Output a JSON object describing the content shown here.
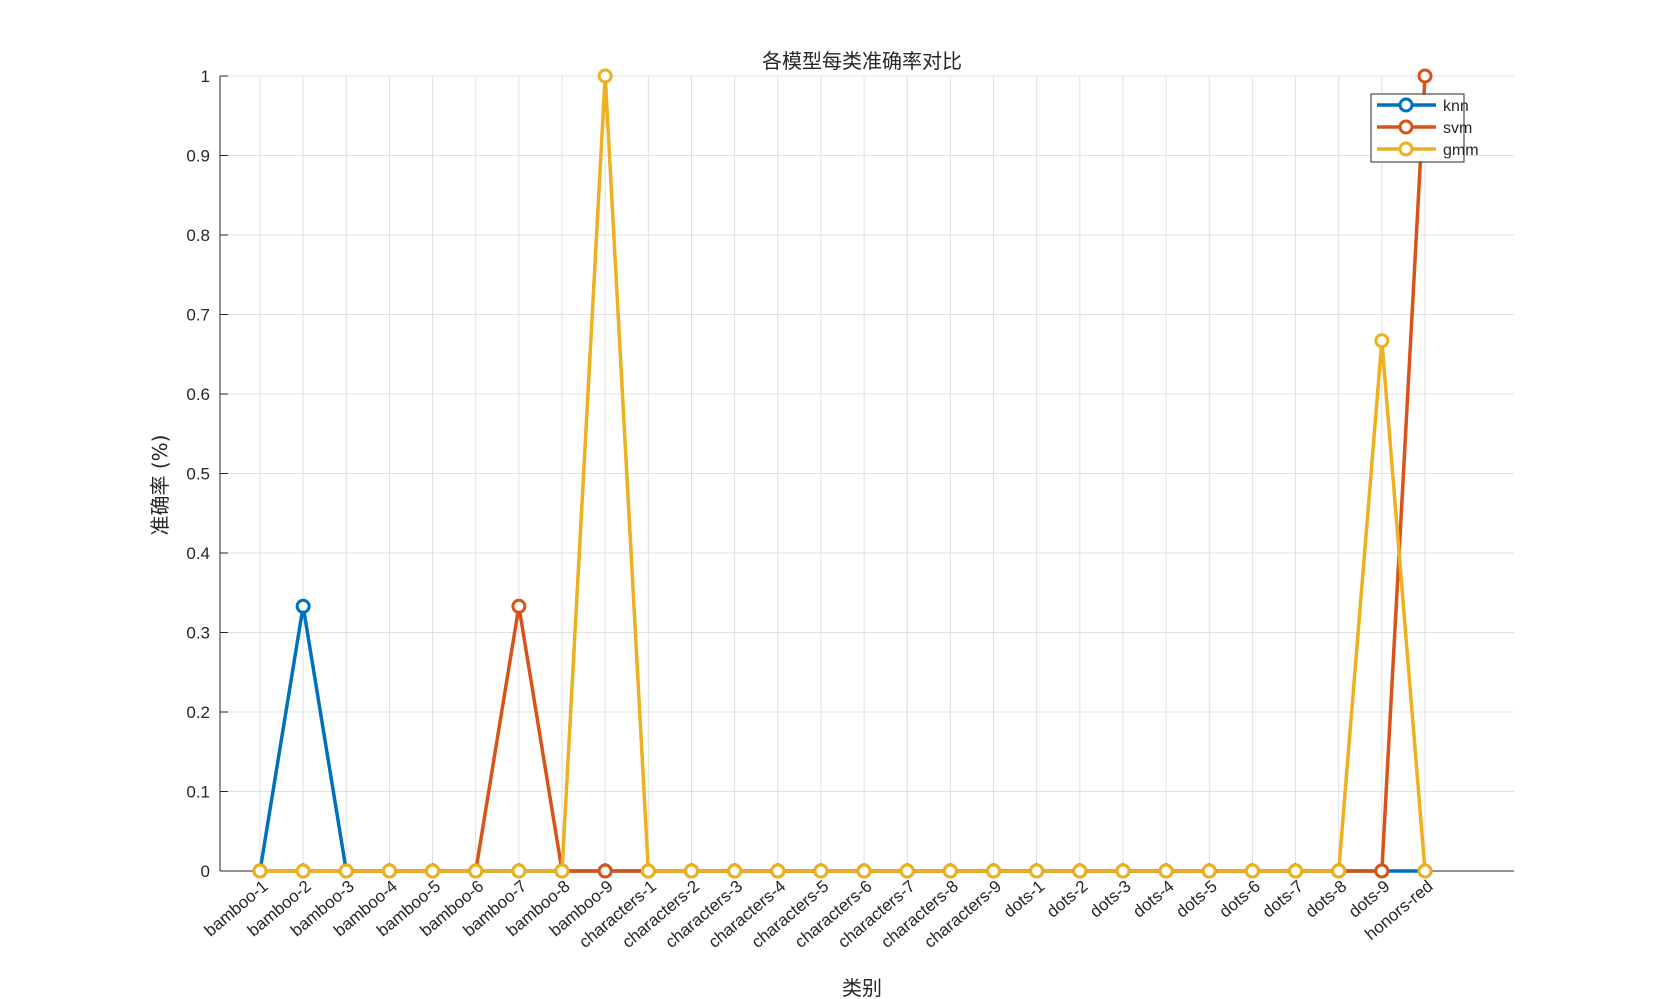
{
  "chart_data": {
    "type": "line",
    "title": "各模型每类准确率对比",
    "xlabel": "类别",
    "ylabel": "准确率 (%)",
    "ylim": [
      0,
      1
    ],
    "yticks": [
      0,
      0.1,
      0.2,
      0.3,
      0.4,
      0.5,
      0.6,
      0.7,
      0.8,
      0.9,
      1
    ],
    "ytick_labels": [
      "0",
      "0.1",
      "0.2",
      "0.3",
      "0.4",
      "0.5",
      "0.6",
      "0.7",
      "0.8",
      "0.9",
      "1"
    ],
    "grid": true,
    "legend_position": "top-right",
    "categories": [
      "bamboo-1",
      "bamboo-2",
      "bamboo-3",
      "bamboo-4",
      "bamboo-5",
      "bamboo-6",
      "bamboo-7",
      "bamboo-8",
      "bamboo-9",
      "characters-1",
      "characters-2",
      "characters-3",
      "characters-4",
      "characters-5",
      "characters-6",
      "characters-7",
      "characters-8",
      "characters-9",
      "dots-1",
      "dots-2",
      "dots-3",
      "dots-4",
      "dots-5",
      "dots-6",
      "dots-7",
      "dots-8",
      "dots-9",
      "honors-red"
    ],
    "series": [
      {
        "name": "knn",
        "color": "#0072BD",
        "values": [
          0,
          0.333,
          0,
          0,
          0,
          0,
          0,
          0,
          0,
          0,
          0,
          0,
          0,
          0,
          0,
          0,
          0,
          0,
          0,
          0,
          0,
          0,
          0,
          0,
          0,
          0,
          0,
          0
        ]
      },
      {
        "name": "svm",
        "color": "#D95319",
        "values": [
          0,
          0,
          0,
          0,
          0,
          0,
          0.333,
          0,
          0,
          0,
          0,
          0,
          0,
          0,
          0,
          0,
          0,
          0,
          0,
          0,
          0,
          0,
          0,
          0,
          0,
          0,
          0,
          1
        ]
      },
      {
        "name": "gmm",
        "color": "#EDB120",
        "values": [
          0,
          0,
          0,
          0,
          0,
          0,
          0,
          0,
          1,
          0,
          0,
          0,
          0,
          0,
          0,
          0,
          0,
          0,
          0,
          0,
          0,
          0,
          0,
          0,
          0,
          0,
          0.667,
          0
        ]
      }
    ]
  }
}
